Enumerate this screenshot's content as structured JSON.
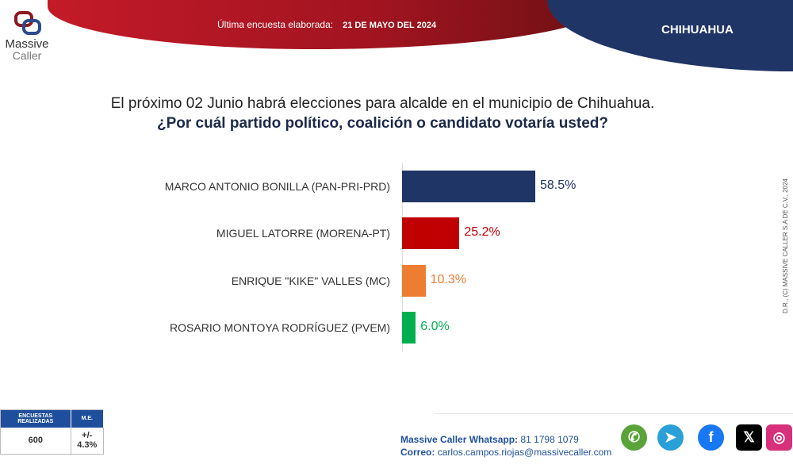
{
  "header": {
    "survey_label": "Última encuesta elaborada:",
    "survey_date": "21 DE MAYO DEL 2024",
    "state": "CHIHUAHUA"
  },
  "logo": {
    "line1": "Massive",
    "line2": "Caller"
  },
  "question": {
    "line1": "El próximo 02 Junio habrá elecciones para alcalde en el municipio de Chihuahua.",
    "line2": "¿Por cuál partido político, coalición o candidato votaría usted?"
  },
  "chart_data": {
    "type": "bar",
    "orientation": "horizontal",
    "categories": [
      "MARCO ANTONIO BONILLA (PAN-PRI-PRD)",
      "MIGUEL LATORRE (MORENA-PT)",
      "ENRIQUE \"KIKE\" VALLES (MC)",
      "ROSARIO MONTOYA RODRÍGUEZ (PVEM)"
    ],
    "values": [
      58.5,
      25.2,
      10.3,
      6.0
    ],
    "labels": [
      "58.5%",
      "25.2%",
      "10.3%",
      "6.0%"
    ],
    "colors": [
      "#1f3566",
      "#c00000",
      "#ed7d31",
      "#00b050"
    ],
    "title": "",
    "xlabel": "",
    "ylabel": ""
  },
  "copyright": "D.R., (C) MASSIVE CALLER S.A DE C.V., 2024",
  "stats": {
    "h1": "ENCUESTAS REALIZADAS",
    "h2": "M.E.",
    "v1": "600",
    "v2": "+/- 4.3%"
  },
  "contact": {
    "wa_label": "Massive Caller Whatsapp:",
    "wa": "81 1798 1079",
    "mail_label": "Correo:",
    "mail": "carlos.campos.riojas@massivecaller.com"
  },
  "social": [
    {
      "name": "whatsapp",
      "color": "#5aa33a",
      "glyph": "✆"
    },
    {
      "name": "telegram",
      "color": "#2a9fd8",
      "glyph": "➤"
    },
    {
      "name": "facebook",
      "color": "#1877f2",
      "glyph": "f"
    },
    {
      "name": "x",
      "color": "#000000",
      "glyph": "𝕏"
    },
    {
      "name": "instagram",
      "color": "#d6317a",
      "glyph": "◎"
    }
  ]
}
